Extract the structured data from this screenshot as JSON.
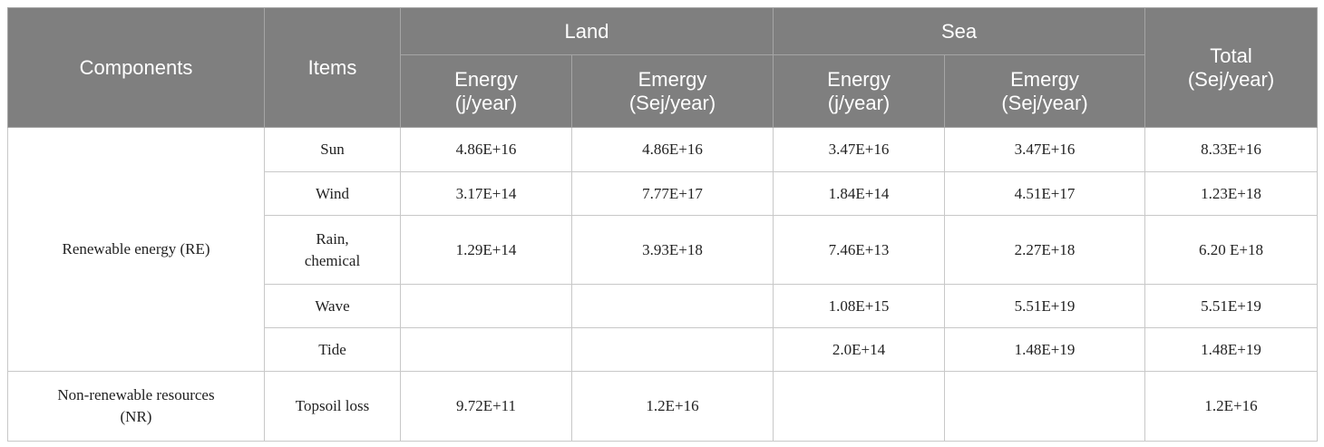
{
  "header": {
    "components": "Components",
    "items": "Items",
    "land": "Land",
    "sea": "Sea",
    "total": [
      "Total",
      "(Sej/year)"
    ],
    "land_energy": [
      "Energy",
      "(j/year)"
    ],
    "land_emergy": [
      "Emergy",
      "(Sej/year)"
    ],
    "sea_energy": [
      "Energy",
      "(j/year)"
    ],
    "sea_emergy": [
      "Emergy",
      "(Sej/year)"
    ]
  },
  "groups": [
    {
      "component": [
        "Renewable energy (RE)"
      ],
      "rows": [
        {
          "item": [
            "Sun"
          ],
          "cells": [
            "4.86E+16",
            "4.86E+16",
            "3.47E+16",
            "3.47E+16",
            "8.33E+16"
          ]
        },
        {
          "item": [
            "Wind"
          ],
          "cells": [
            "3.17E+14",
            "7.77E+17",
            "1.84E+14",
            "4.51E+17",
            "1.23E+18"
          ]
        },
        {
          "item": [
            "Rain,",
            "chemical"
          ],
          "cells": [
            "1.29E+14",
            "3.93E+18",
            "7.46E+13",
            "2.27E+18",
            "6.20 E+18"
          ]
        },
        {
          "item": [
            "Wave"
          ],
          "cells": [
            null,
            null,
            "1.08E+15",
            "5.51E+19",
            "5.51E+19"
          ]
        },
        {
          "item": [
            "Tide"
          ],
          "cells": [
            null,
            null,
            "2.0E+14",
            "1.48E+19",
            "1.48E+19"
          ]
        }
      ]
    },
    {
      "component": [
        "Non-renewable resources",
        "(NR)"
      ],
      "rows": [
        {
          "item": [
            "Topsoil loss"
          ],
          "cells": [
            "9.72E+11",
            "1.2E+16",
            null,
            null,
            "1.2E+16"
          ]
        }
      ]
    }
  ]
}
